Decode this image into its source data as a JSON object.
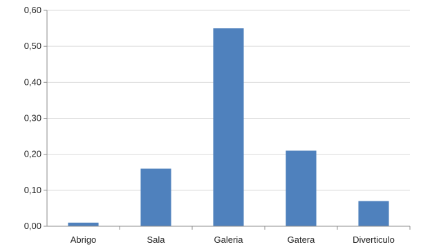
{
  "chart_data": {
    "type": "bar",
    "categories": [
      "Abrigo",
      "Sala",
      "Galeria",
      "Gatera",
      "Diverticulo"
    ],
    "values": [
      0.01,
      0.16,
      0.55,
      0.21,
      0.07
    ],
    "ylim": [
      0,
      0.6
    ],
    "yticks": [
      "0,00",
      "0,10",
      "0,20",
      "0,30",
      "0,40",
      "0,50",
      "0,60"
    ],
    "grid": true,
    "bar_color": "#4f81bd",
    "grid_color": "#d9d9d9",
    "axis_color": "#8c8c8c"
  }
}
